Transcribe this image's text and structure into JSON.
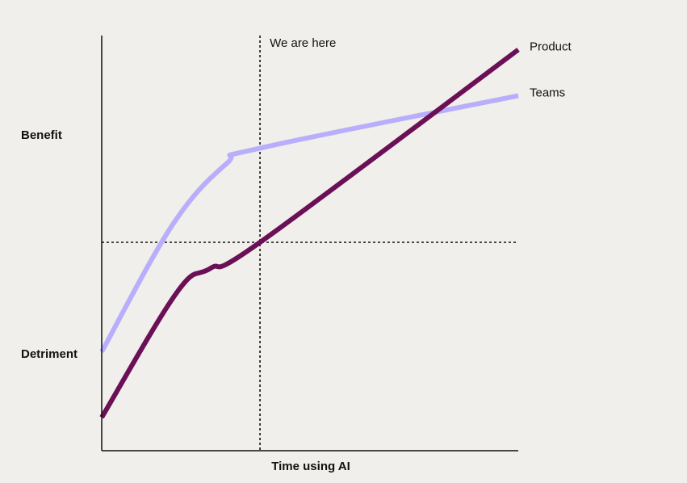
{
  "chart_data": {
    "type": "line",
    "title": "",
    "xlabel": "Time using AI",
    "ylabel": "",
    "ylim": [
      -1,
      1
    ],
    "xlim": [
      0,
      10
    ],
    "y_tick_labels": [
      {
        "label": "Benefit",
        "value": 0.5
      },
      {
        "label": "Detriment",
        "value": -0.5
      }
    ],
    "reference_lines": {
      "horizontal_y": 0,
      "vertical_x": 3.8,
      "vertical_label": "We are here"
    },
    "series": [
      {
        "name": "Teams",
        "color": "#b8aefb",
        "points": [
          [
            0,
            -0.5
          ],
          [
            1.7,
            0.08
          ],
          [
            3.0,
            0.36
          ],
          [
            3.8,
            0.43
          ],
          [
            10,
            0.67
          ]
        ]
      },
      {
        "name": "Product",
        "color": "#6b0f57",
        "points": [
          [
            0,
            -0.8
          ],
          [
            1.8,
            -0.23
          ],
          [
            2.6,
            -0.12
          ],
          [
            3.8,
            0.0
          ],
          [
            10,
            0.88
          ]
        ]
      }
    ],
    "grid": false,
    "legend": "inline at line ends"
  }
}
